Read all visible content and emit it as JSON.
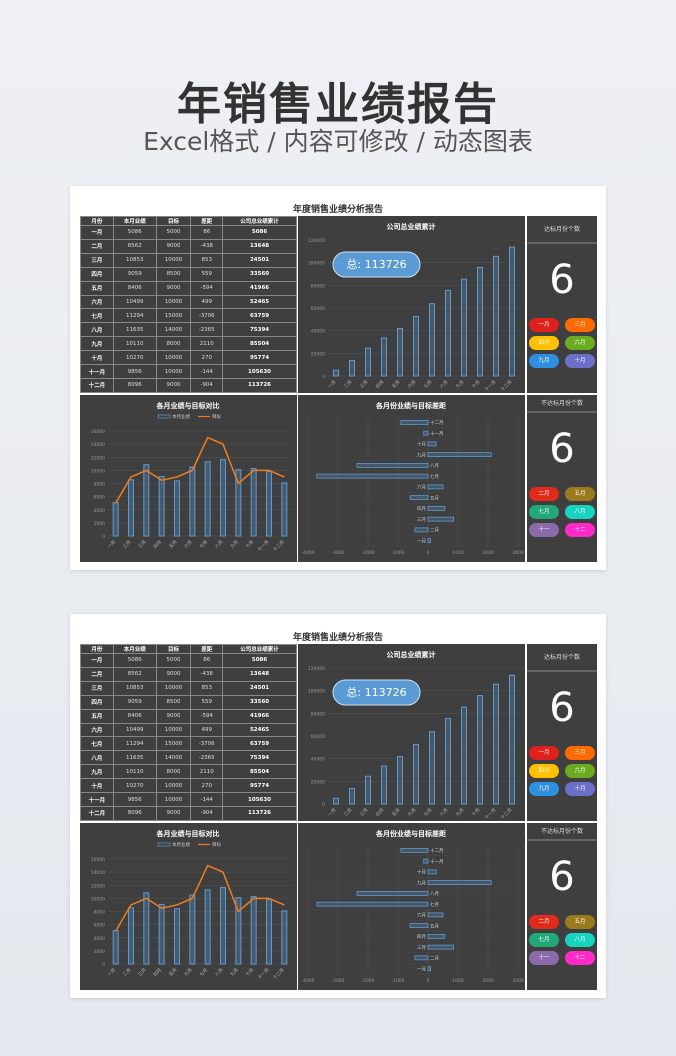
{
  "header": {
    "title": "年销售业绩报告",
    "subtitle": "Excel格式 / 内容可修改 / 动态图表"
  },
  "dashboard": {
    "title": "年度销售业绩分析报告",
    "table": {
      "headers": [
        "月份",
        "本月业绩",
        "目标",
        "差距",
        "公司总业绩累计"
      ],
      "rows": [
        [
          "一月",
          "5086",
          "5000",
          "86",
          "5086"
        ],
        [
          "二月",
          "8562",
          "9000",
          "-438",
          "13648"
        ],
        [
          "三月",
          "10853",
          "10000",
          "853",
          "24501"
        ],
        [
          "四月",
          "9059",
          "8500",
          "559",
          "33560"
        ],
        [
          "五月",
          "8406",
          "9000",
          "-594",
          "41966"
        ],
        [
          "六月",
          "10499",
          "10000",
          "499",
          "52465"
        ],
        [
          "七月",
          "11294",
          "15000",
          "-3706",
          "63759"
        ],
        [
          "八月",
          "11635",
          "14000",
          "-2365",
          "75394"
        ],
        [
          "九月",
          "10110",
          "8000",
          "2110",
          "85504"
        ],
        [
          "十月",
          "10270",
          "10000",
          "270",
          "95774"
        ],
        [
          "十一月",
          "9856",
          "10000",
          "-144",
          "105630"
        ],
        [
          "十二月",
          "8096",
          "9000",
          "-904",
          "113726"
        ]
      ]
    },
    "total_label": "总: 113726",
    "colors": {
      "bar": "#5b9bd5",
      "line": "#f07d1e",
      "panel": "#3f3f3f"
    }
  },
  "chart_data": [
    {
      "type": "bar",
      "title": "公司总业绩累计",
      "categories": [
        "一月",
        "二月",
        "三月",
        "四月",
        "五月",
        "六月",
        "七月",
        "八月",
        "九月",
        "十月",
        "十一月",
        "十二月"
      ],
      "values": [
        5086,
        13648,
        24501,
        33560,
        41966,
        52465,
        63759,
        75394,
        85504,
        95774,
        105630,
        113726
      ],
      "ylim": [
        0,
        120000
      ],
      "yticks": [
        0,
        20000,
        40000,
        60000,
        80000,
        100000,
        120000
      ],
      "grid": true
    },
    {
      "type": "bar",
      "title": "各月业绩与目标对比",
      "categories": [
        "一月",
        "二月",
        "三月",
        "四月",
        "五月",
        "六月",
        "七月",
        "八月",
        "九月",
        "十月",
        "十一月",
        "十二月"
      ],
      "series": [
        {
          "name": "本月业绩",
          "type": "bar",
          "values": [
            5086,
            8562,
            10853,
            9059,
            8406,
            10499,
            11294,
            11635,
            10110,
            10270,
            9856,
            8096
          ]
        },
        {
          "name": "目标",
          "type": "line",
          "values": [
            5000,
            9000,
            10000,
            8500,
            9000,
            10000,
            15000,
            14000,
            8000,
            10000,
            10000,
            9000
          ]
        }
      ],
      "ylim": [
        0,
        16000
      ],
      "yticks": [
        0,
        2000,
        4000,
        6000,
        8000,
        10000,
        12000,
        14000,
        16000
      ],
      "legend": "top",
      "grid": true
    },
    {
      "type": "bar",
      "orientation": "horizontal",
      "title": "各月份业绩与目标差距",
      "categories": [
        "一月",
        "二月",
        "三月",
        "四月",
        "五月",
        "六月",
        "七月",
        "八月",
        "九月",
        "十月",
        "十一月",
        "十二月"
      ],
      "values": [
        86,
        -438,
        853,
        559,
        -594,
        499,
        -3706,
        -2365,
        2110,
        270,
        -144,
        -904
      ],
      "xlim": [
        -4000,
        3000
      ],
      "xticks": [
        -4000,
        -3000,
        -2000,
        -1000,
        0,
        1000,
        2000,
        3000
      ],
      "grid": true
    }
  ],
  "kpi": {
    "met": {
      "label": "达标月份个数",
      "count": "6",
      "months": [
        {
          "name": "一月",
          "color": "#e0201a"
        },
        {
          "name": "三月",
          "color": "#ff6a00"
        },
        {
          "name": "四月",
          "color": "#ffc000"
        },
        {
          "name": "六月",
          "color": "#6aab1f"
        },
        {
          "name": "九月",
          "color": "#2f8fe0"
        },
        {
          "name": "十月",
          "color": "#6b6fc8"
        }
      ]
    },
    "missed": {
      "label": "不达标月份个数",
      "count": "6",
      "months": [
        {
          "name": "二月",
          "color": "#e02a1a"
        },
        {
          "name": "五月",
          "color": "#9a7a1a"
        },
        {
          "name": "七月",
          "color": "#22a878"
        },
        {
          "name": "八月",
          "color": "#17d4c0"
        },
        {
          "name": "十一",
          "color": "#8a6aaa"
        },
        {
          "name": "十二",
          "color": "#ff2ac8"
        }
      ]
    }
  }
}
